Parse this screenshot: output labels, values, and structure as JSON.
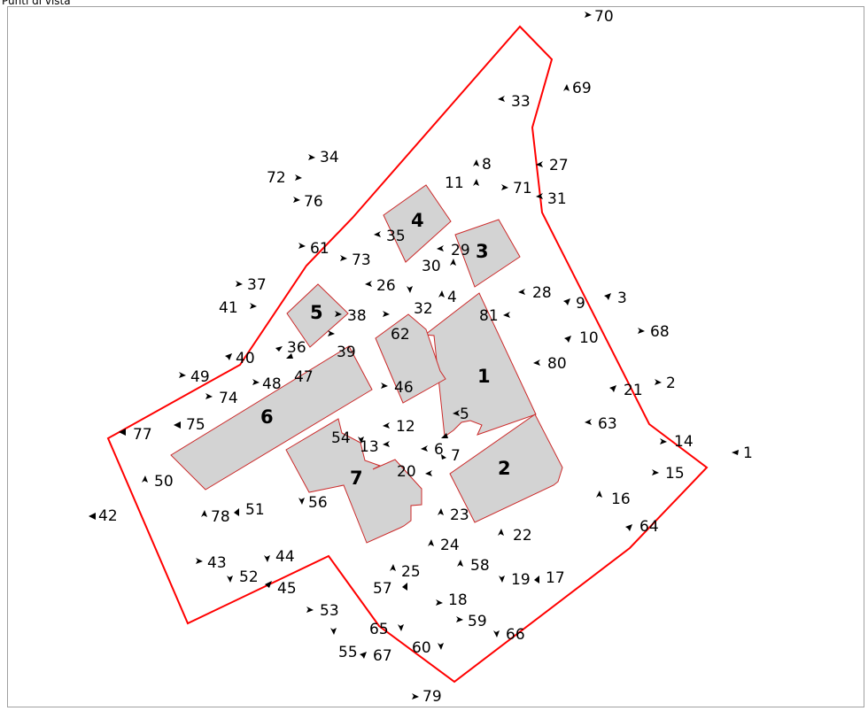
{
  "header": {
    "title": "Punti di vista"
  },
  "colors": {
    "boundary": "#ff0000",
    "building_fill": "#d3d3d3",
    "building_stroke": "#cc2a2a"
  },
  "buildings": [
    {
      "id": "b1",
      "label": "1"
    },
    {
      "id": "b2",
      "label": "2"
    },
    {
      "id": "b3",
      "label": "3"
    },
    {
      "id": "b4",
      "label": "4"
    },
    {
      "id": "b5",
      "label": "5"
    },
    {
      "id": "b6",
      "label": "6"
    },
    {
      "id": "b7",
      "label": "7"
    }
  ],
  "viewpoints": [
    "70",
    "69",
    "33",
    "27",
    "8",
    "11",
    "71",
    "31",
    "34",
    "72",
    "76",
    "35",
    "29",
    "30",
    "61",
    "73",
    "37",
    "41",
    "26",
    "4",
    "28",
    "9",
    "3",
    "32",
    "81",
    "5_b",
    "38",
    "62",
    "10",
    "68",
    "36",
    "40",
    "39",
    "80",
    "49",
    "48",
    "47",
    "46",
    "21",
    "2",
    "74",
    "63",
    "75",
    "77",
    "12",
    "54",
    "13",
    "6",
    "14",
    "1",
    "20",
    "7",
    "15",
    "50",
    "16",
    "56",
    "78",
    "51",
    "42",
    "23",
    "64",
    "22",
    "24",
    "43",
    "44",
    "58",
    "52",
    "25",
    "19",
    "17",
    "57",
    "45",
    "18",
    "53",
    "59",
    "65",
    "66",
    "60",
    "55",
    "67",
    "79"
  ]
}
